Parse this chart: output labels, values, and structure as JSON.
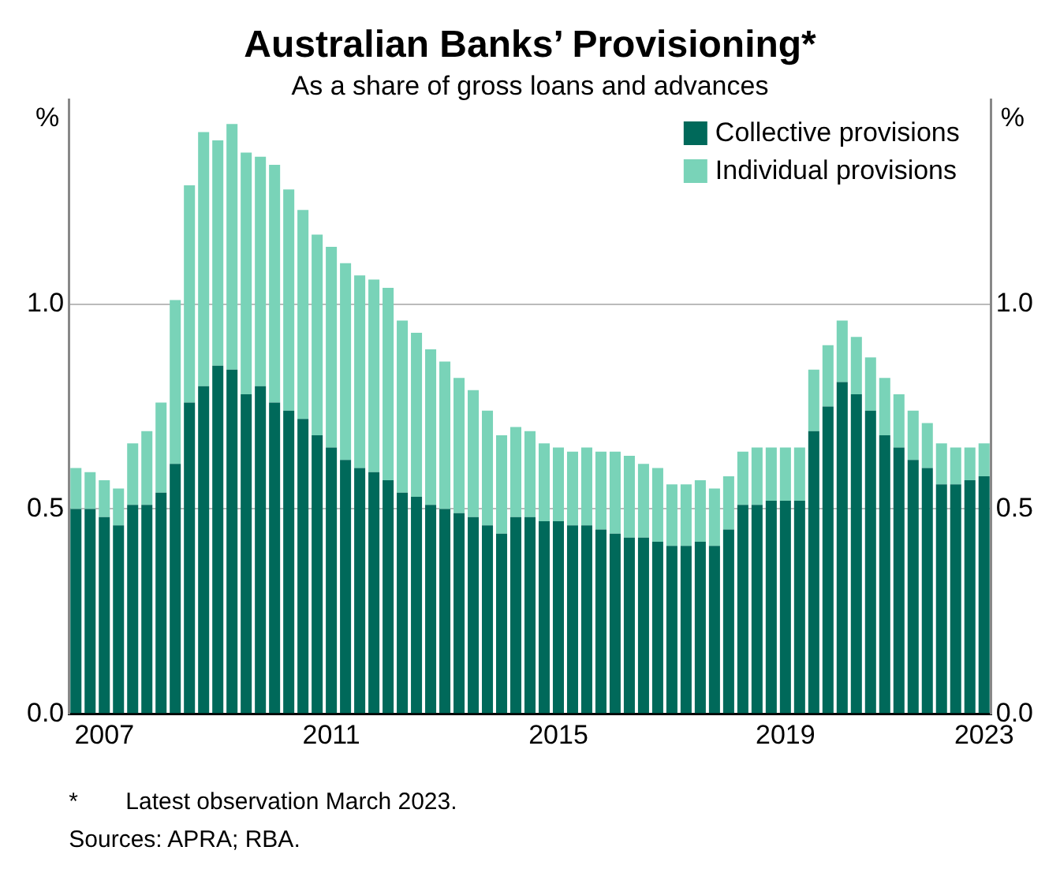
{
  "chart_data": {
    "type": "bar",
    "title": "Australian Banks’ Provisioning*",
    "subtitle": "As a share of gross loans and advances",
    "ylabel": "%",
    "y2label": "%",
    "stacked": true,
    "categories": [
      null,
      null,
      "2007",
      null,
      null,
      null,
      null,
      null,
      null,
      null,
      null,
      null,
      null,
      null,
      null,
      null,
      null,
      null,
      "2011",
      null,
      null,
      null,
      null,
      null,
      null,
      null,
      null,
      null,
      null,
      null,
      null,
      null,
      null,
      null,
      "2015",
      null,
      null,
      null,
      null,
      null,
      null,
      null,
      null,
      null,
      null,
      null,
      null,
      null,
      null,
      null,
      "2019",
      null,
      null,
      null,
      null,
      null,
      null,
      null,
      null,
      null,
      null,
      null,
      null,
      null,
      "2023"
    ],
    "series": [
      {
        "name": "Collective provisions",
        "color": "#00695a",
        "values": [
          0.5,
          0.5,
          0.48,
          0.46,
          0.51,
          0.51,
          0.54,
          0.61,
          0.76,
          0.8,
          0.85,
          0.84,
          0.78,
          0.8,
          0.76,
          0.74,
          0.72,
          0.68,
          0.65,
          0.62,
          0.6,
          0.59,
          0.57,
          0.54,
          0.53,
          0.51,
          0.5,
          0.49,
          0.48,
          0.46,
          0.44,
          0.48,
          0.48,
          0.47,
          0.47,
          0.46,
          0.46,
          0.45,
          0.44,
          0.43,
          0.43,
          0.42,
          0.41,
          0.41,
          0.42,
          0.41,
          0.45,
          0.51,
          0.51,
          0.52,
          0.52,
          0.52,
          0.69,
          0.75,
          0.81,
          0.78,
          0.74,
          0.68,
          0.65,
          0.62,
          0.6,
          0.56,
          0.56,
          0.57,
          0.58
        ]
      },
      {
        "name": "Individual provisions",
        "color": "#79d3b8",
        "values": [
          0.1,
          0.09,
          0.09,
          0.09,
          0.15,
          0.18,
          0.22,
          0.4,
          0.53,
          0.62,
          0.55,
          0.6,
          0.59,
          0.56,
          0.58,
          0.54,
          0.51,
          0.49,
          0.49,
          0.48,
          0.47,
          0.47,
          0.47,
          0.42,
          0.4,
          0.38,
          0.36,
          0.33,
          0.31,
          0.28,
          0.24,
          0.22,
          0.21,
          0.19,
          0.18,
          0.18,
          0.19,
          0.19,
          0.2,
          0.2,
          0.18,
          0.18,
          0.15,
          0.15,
          0.15,
          0.14,
          0.13,
          0.13,
          0.14,
          0.13,
          0.13,
          0.13,
          0.15,
          0.15,
          0.15,
          0.14,
          0.13,
          0.14,
          0.13,
          0.12,
          0.11,
          0.1,
          0.09,
          0.08,
          0.08
        ]
      }
    ],
    "ylim": [
      0,
      1.5
    ],
    "yticks": [
      {
        "value": 0,
        "label": "0.0"
      },
      {
        "value": 0.5,
        "label": "0.5"
      },
      {
        "value": 1,
        "label": "1.0"
      }
    ],
    "y2lim": [
      0,
      1.5
    ],
    "y2ticks": [
      {
        "value": 0,
        "label": "0.0"
      },
      {
        "value": 0.5,
        "label": "0.5"
      },
      {
        "value": 1,
        "label": "1.0"
      }
    ],
    "grid": "y",
    "legend": "top right",
    "annotations": [
      "*      Latest observation March 2023.",
      "Sources: APRA; RBA."
    ]
  }
}
